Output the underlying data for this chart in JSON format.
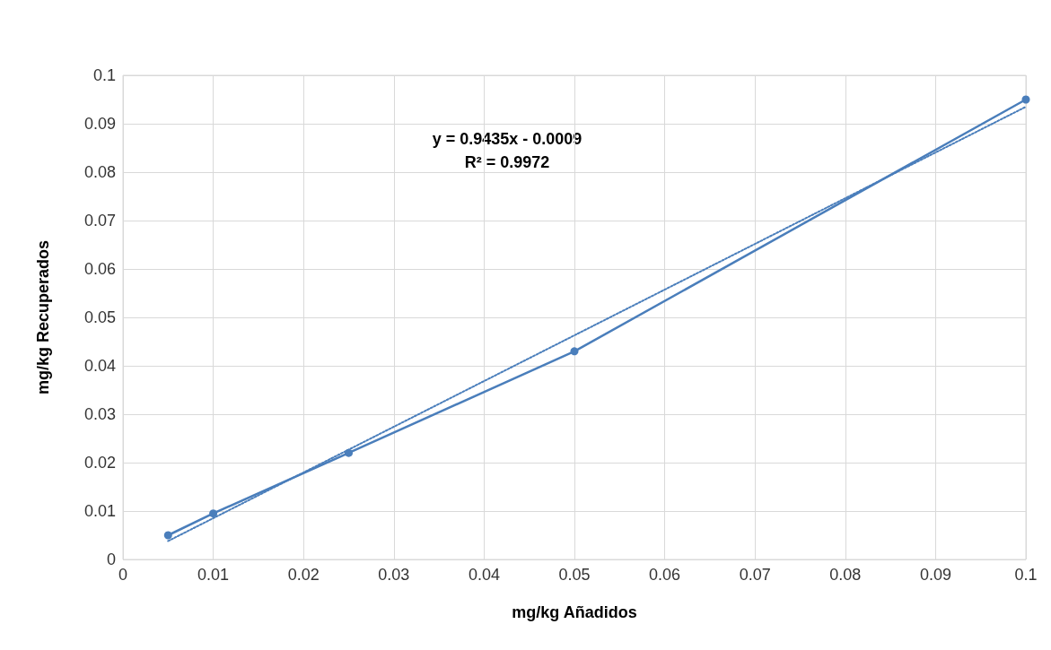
{
  "chart_data": {
    "type": "line",
    "xlabel": "mg/kg Añadidos",
    "ylabel": "mg/kg Recuperados",
    "annotations": [
      "y = 0.9435x - 0.0009",
      "R² = 0.9972"
    ],
    "series": [
      {
        "color": "#4a7ebb",
        "x": [
          0.005,
          0.01,
          0.025,
          0.05,
          0.1
        ],
        "values": [
          0.005,
          0.0095,
          0.022,
          0.043,
          0.095
        ],
        "marker": "circle",
        "line_style": "solid"
      },
      {
        "color": "#4a7ebb",
        "x": [
          0.005,
          0.1
        ],
        "values": [
          0.0038,
          0.0935
        ],
        "marker": "none",
        "line_style": "dotted"
      }
    ],
    "xlim": [
      0,
      0.1
    ],
    "xticks": [
      0,
      0.01,
      0.02,
      0.03,
      0.04,
      0.05,
      0.06,
      0.07,
      0.08,
      0.09,
      0.1
    ],
    "ylim": [
      0,
      0.1
    ],
    "yticks": [
      0,
      0.01,
      0.02,
      0.03,
      0.04,
      0.05,
      0.06,
      0.07,
      0.08,
      0.09,
      0.1
    ],
    "grid": true
  }
}
